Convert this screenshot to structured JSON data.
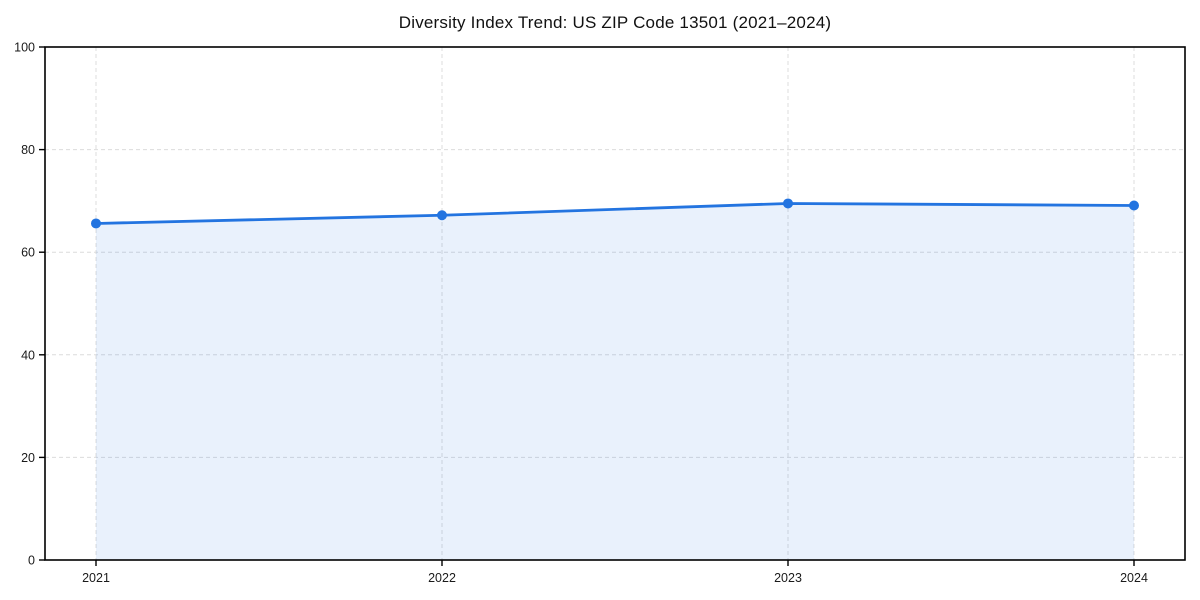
{
  "title": "Diversity Index Trend: US ZIP Code 13501 (2021–2024)",
  "colors": {
    "line": "#2374e0",
    "marker": "#2374e0",
    "area_fill": "rgba(35, 116, 224, 0.10)",
    "grid": "#dcdcdc",
    "spine": "#000000",
    "tick_label": "#1a1a1a",
    "background": "#ffffff"
  },
  "chart_data": {
    "type": "area",
    "series_name": "Diversity Index",
    "x": [
      2021,
      2022,
      2023,
      2024
    ],
    "values": [
      65.6,
      67.2,
      69.5,
      69.1
    ],
    "xtick_labels": [
      "2021",
      "2022",
      "2023",
      "2024"
    ],
    "ytick_values": [
      0,
      20,
      40,
      60,
      80,
      100
    ],
    "ylim": [
      0,
      100
    ],
    "title": "Diversity Index Trend: US ZIP Code 13501 (2021–2024)",
    "xlabel": "",
    "ylabel": "",
    "grid": true,
    "grid_style": "dashed",
    "legend_position": "none",
    "markers": "circle"
  }
}
